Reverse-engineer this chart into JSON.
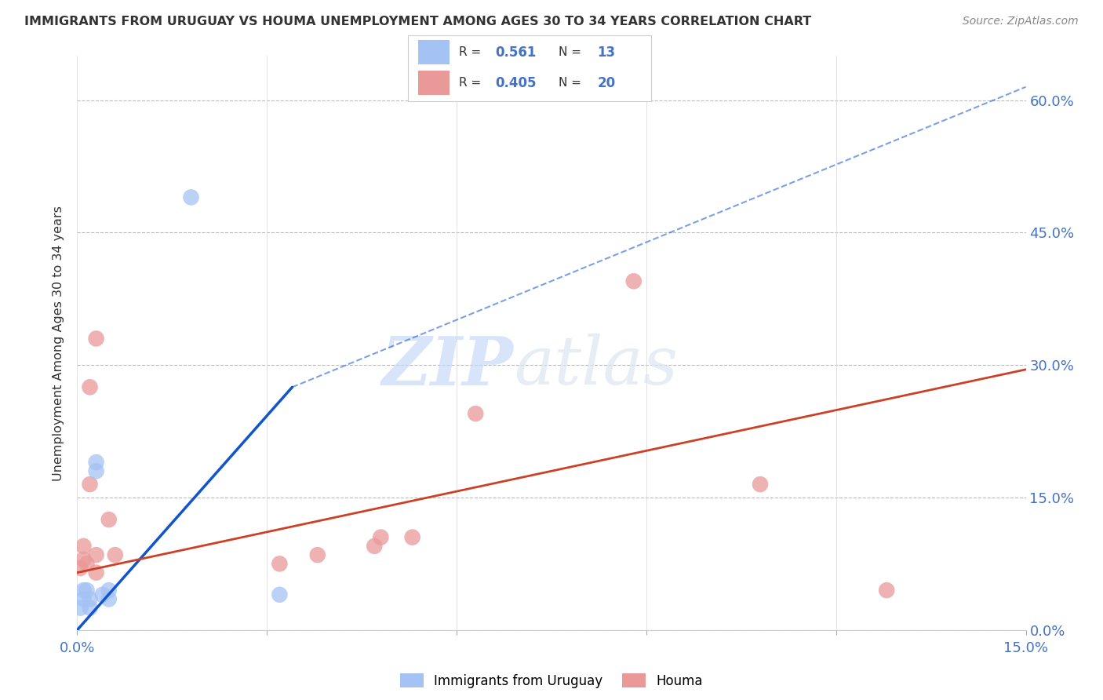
{
  "title": "IMMIGRANTS FROM URUGUAY VS HOUMA UNEMPLOYMENT AMONG AGES 30 TO 34 YEARS CORRELATION CHART",
  "source": "Source: ZipAtlas.com",
  "ylabel": "Unemployment Among Ages 30 to 34 years",
  "xlim": [
    0.0,
    0.15
  ],
  "ylim": [
    0.0,
    0.65
  ],
  "xticks": [
    0.0,
    0.03,
    0.06,
    0.09,
    0.12,
    0.15
  ],
  "yticks": [
    0.0,
    0.15,
    0.3,
    0.45,
    0.6
  ],
  "xtick_labels": [
    "0.0%",
    "",
    "",
    "",
    "",
    "15.0%"
  ],
  "ytick_labels_right": [
    "0.0%",
    "15.0%",
    "30.0%",
    "45.0%",
    "60.0%"
  ],
  "legend_R1": "0.561",
  "legend_N1": "13",
  "legend_R2": "0.405",
  "legend_N2": "20",
  "blue_color": "#a4c2f4",
  "pink_color": "#ea9999",
  "blue_line_color": "#1155cc",
  "pink_line_color": "#cc4125",
  "blue_scatter": [
    [
      0.0005,
      0.025
    ],
    [
      0.001,
      0.035
    ],
    [
      0.001,
      0.045
    ],
    [
      0.0015,
      0.045
    ],
    [
      0.002,
      0.025
    ],
    [
      0.002,
      0.035
    ],
    [
      0.003,
      0.18
    ],
    [
      0.003,
      0.19
    ],
    [
      0.004,
      0.04
    ],
    [
      0.005,
      0.035
    ],
    [
      0.005,
      0.045
    ],
    [
      0.018,
      0.49
    ],
    [
      0.032,
      0.04
    ]
  ],
  "pink_scatter": [
    [
      0.0005,
      0.07
    ],
    [
      0.001,
      0.08
    ],
    [
      0.001,
      0.095
    ],
    [
      0.0015,
      0.075
    ],
    [
      0.002,
      0.165
    ],
    [
      0.002,
      0.275
    ],
    [
      0.003,
      0.065
    ],
    [
      0.003,
      0.085
    ],
    [
      0.003,
      0.33
    ],
    [
      0.005,
      0.125
    ],
    [
      0.006,
      0.085
    ],
    [
      0.032,
      0.075
    ],
    [
      0.038,
      0.085
    ],
    [
      0.047,
      0.095
    ],
    [
      0.048,
      0.105
    ],
    [
      0.053,
      0.105
    ],
    [
      0.063,
      0.245
    ],
    [
      0.088,
      0.395
    ],
    [
      0.108,
      0.165
    ],
    [
      0.128,
      0.045
    ]
  ],
  "blue_trendline_solid": [
    [
      0.0,
      0.0
    ],
    [
      0.034,
      0.275
    ]
  ],
  "blue_trendline_dashed": [
    [
      0.034,
      0.275
    ],
    [
      0.15,
      0.615
    ]
  ],
  "pink_trendline": [
    [
      0.0,
      0.065
    ],
    [
      0.15,
      0.295
    ]
  ],
  "watermark_zip": "ZIP",
  "watermark_atlas": "atlas",
  "background_color": "#ffffff"
}
